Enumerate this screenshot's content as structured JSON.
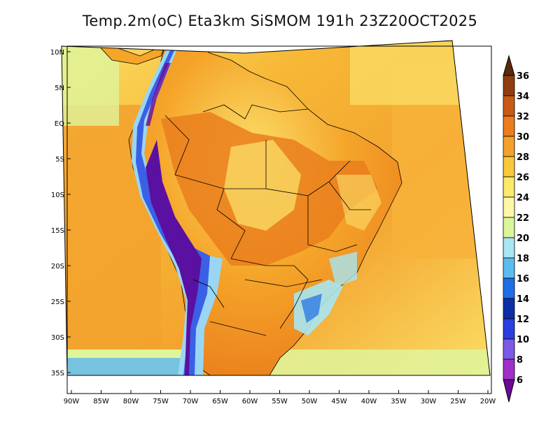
{
  "title": "Temp.2m(oC) Eta3km SiSMOM 191h 23Z20OCT2025",
  "lat_labels": [
    "10N",
    "5N",
    "EQ",
    "5S",
    "10S",
    "15S",
    "20S",
    "25S",
    "30S",
    "35S"
  ],
  "lon_labels": [
    "90W",
    "85W",
    "80W",
    "75W",
    "70W",
    "65W",
    "60W",
    "55W",
    "50W",
    "45W",
    "40W",
    "35W",
    "30W",
    "25W",
    "20W"
  ],
  "colorbar": {
    "labels": [
      "36",
      "34",
      "32",
      "30",
      "28",
      "26",
      "24",
      "22",
      "20",
      "18",
      "16",
      "14",
      "12",
      "10",
      "8",
      "6"
    ],
    "colors": [
      "#5a2a0c",
      "#8e3d10",
      "#c85a14",
      "#ea7e1c",
      "#f4a12c",
      "#f8c93a",
      "#fbe96a",
      "#fdf8a6",
      "#dcf59a",
      "#a8e6f2",
      "#5cbcf0",
      "#1e6ee6",
      "#0e2ea8",
      "#2a3ee0",
      "#7a5ae6",
      "#a030c8",
      "#6a0a96"
    ]
  },
  "field_colors": {
    "ocean": "#f3a32e",
    "ocean_warm": "#f7b836",
    "ocean_cool": "#fbe36a",
    "land_hot": "#ea7e1c",
    "land_warm": "#f5a52a",
    "land_mild": "#fbe06a",
    "andes_cold": "#5a10a0",
    "andes_cool": "#3a60e6",
    "andes_edge": "#9ad6f4",
    "south_cool": "#dff59c",
    "south_cold": "#5cb6f0",
    "border": "#000000"
  }
}
